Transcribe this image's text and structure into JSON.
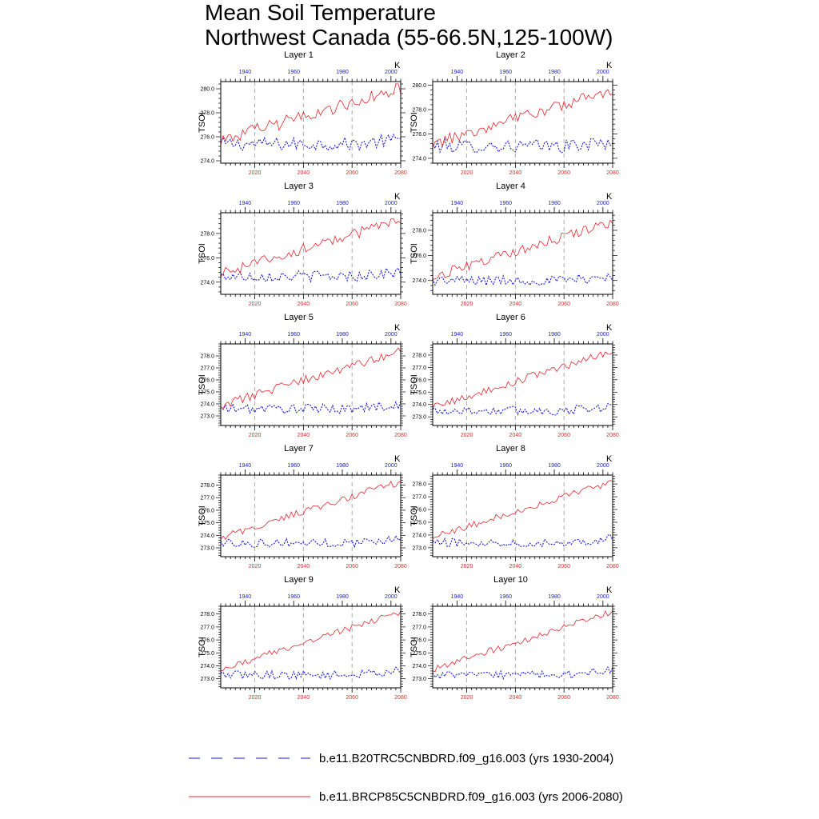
{
  "title": {
    "line1": "Mean Soil Temperature",
    "line2": "Northwest Canada (55-66.5N,125-100W)"
  },
  "colors": {
    "hist": "#1a1adb",
    "future": "#e8262c",
    "grid": "#aaaaaa",
    "axis": "#000000"
  },
  "chart_data": {
    "type": "line",
    "variable": "TSOI",
    "units": "K",
    "top_axis": {
      "label_color": "blue",
      "range": [
        1930,
        2004
      ],
      "ticks": [
        1940,
        1960,
        1980,
        2000
      ]
    },
    "bottom_axis": {
      "label_color": "red",
      "range": [
        2006,
        2080
      ],
      "ticks": [
        2020,
        2040,
        2060,
        2080
      ]
    },
    "legend": [
      {
        "series": "hist",
        "label": "b.e11.B20TRC5CNBDRD.f09_g16.003 (yrs 1930-2004)",
        "style": "dashed"
      },
      {
        "series": "future",
        "label": "b.e11.BRCP85C5CNBDRD.f09_g16.003 (yrs 2006-2080)",
        "style": "solid"
      }
    ],
    "panels": [
      {
        "title": "Layer 1",
        "ylim": [
          273.8,
          280.6
        ],
        "yticks": [
          "274.0",
          "276.0",
          "278.0",
          "280.0"
        ],
        "hist_base": 275.4,
        "hist_amp": 0.55,
        "fut_start": 275.7,
        "fut_end": 280.0,
        "fut_amp": 0.55
      },
      {
        "title": "Layer 2",
        "ylim": [
          273.6,
          280.3
        ],
        "yticks": [
          "274.0",
          "276.0",
          "278.0",
          "280.0"
        ],
        "hist_base": 275.0,
        "hist_amp": 0.55,
        "fut_start": 275.2,
        "fut_end": 279.6,
        "fut_amp": 0.5
      },
      {
        "title": "Layer 3",
        "ylim": [
          273.0,
          279.7
        ],
        "yticks": [
          "274.0",
          "276.0",
          "278.0"
        ],
        "hist_base": 274.5,
        "hist_amp": 0.45,
        "fut_start": 274.7,
        "fut_end": 279.1,
        "fut_amp": 0.45
      },
      {
        "title": "Layer 4",
        "ylim": [
          272.9,
          279.4
        ],
        "yticks": [
          "274.0",
          "276.0",
          "278.0"
        ],
        "hist_base": 274.0,
        "hist_amp": 0.4,
        "fut_start": 274.3,
        "fut_end": 278.7,
        "fut_amp": 0.4
      },
      {
        "title": "Layer 5",
        "ylim": [
          272.2,
          279.0
        ],
        "yticks": [
          "273.0",
          "274.0",
          "275.0",
          "276.0",
          "277.0",
          "278.0"
        ],
        "hist_base": 273.6,
        "hist_amp": 0.4,
        "fut_start": 273.9,
        "fut_end": 278.4,
        "fut_amp": 0.35
      },
      {
        "title": "Layer 6",
        "ylim": [
          272.3,
          278.9
        ],
        "yticks": [
          "273.0",
          "274.0",
          "275.0",
          "276.0",
          "277.0",
          "278.0"
        ],
        "hist_base": 273.5,
        "hist_amp": 0.38,
        "fut_start": 273.8,
        "fut_end": 278.3,
        "fut_amp": 0.33
      },
      {
        "title": "Layer 7",
        "ylim": [
          272.3,
          278.8
        ],
        "yticks": [
          "273.0",
          "274.0",
          "275.0",
          "276.0",
          "277.0",
          "278.0"
        ],
        "hist_base": 273.4,
        "hist_amp": 0.35,
        "fut_start": 273.8,
        "fut_end": 278.3,
        "fut_amp": 0.3
      },
      {
        "title": "Layer 8",
        "ylim": [
          272.3,
          278.7
        ],
        "yticks": [
          "273.0",
          "274.0",
          "275.0",
          "276.0",
          "277.0",
          "278.0"
        ],
        "hist_base": 273.4,
        "hist_amp": 0.33,
        "fut_start": 273.8,
        "fut_end": 278.2,
        "fut_amp": 0.28
      },
      {
        "title": "Layer 9",
        "ylim": [
          272.3,
          278.6
        ],
        "yticks": [
          "273.0",
          "274.0",
          "275.0",
          "276.0",
          "277.0",
          "278.0"
        ],
        "hist_base": 273.3,
        "hist_amp": 0.32,
        "fut_start": 273.7,
        "fut_end": 278.2,
        "fut_amp": 0.26
      },
      {
        "title": "Layer 10",
        "ylim": [
          272.3,
          278.6
        ],
        "yticks": [
          "273.0",
          "274.0",
          "275.0",
          "276.0",
          "277.0",
          "278.0"
        ],
        "hist_base": 273.3,
        "hist_amp": 0.3,
        "fut_start": 273.7,
        "fut_end": 278.2,
        "fut_amp": 0.25
      }
    ]
  }
}
